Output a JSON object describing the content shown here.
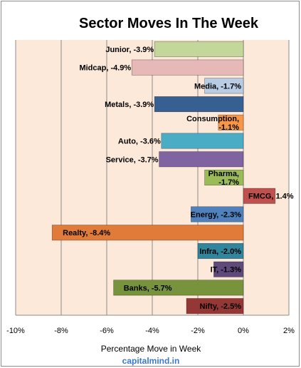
{
  "chart_data": {
    "type": "bar",
    "orientation": "horizontal",
    "title": "Sector Moves In The Week",
    "xlabel": "Percentage Move in Week",
    "ylabel": "",
    "xlim": [
      -10,
      2
    ],
    "x_ticks": [
      "-10%",
      "-8%",
      "-6%",
      "-4%",
      "-2%",
      "0%",
      "2%"
    ],
    "x_tick_values": [
      -10,
      -8,
      -6,
      -4,
      -2,
      0,
      2
    ],
    "grid": "vertical",
    "plot_background": "#fde9d9",
    "source": "capitalmind.in",
    "categories": [
      "Junior",
      "Midcap",
      "Media",
      "Metals",
      "Consumption",
      "Auto",
      "Service",
      "Pharma",
      "FMCG",
      "Energy",
      "Realty",
      "Infra",
      "IT",
      "Banks",
      "Nifty"
    ],
    "values": [
      -3.9,
      -4.9,
      -1.7,
      -3.9,
      -1.1,
      -3.6,
      -3.7,
      -1.7,
      1.4,
      -2.3,
      -8.4,
      -2.0,
      -1.3,
      -5.7,
      -2.5
    ],
    "bars": [
      {
        "name": "Junior",
        "value": -3.9,
        "label": [
          "Junior, -3.9%"
        ],
        "color": "#c4d79b"
      },
      {
        "name": "Midcap",
        "value": -4.9,
        "label": [
          "Midcap, -4.9%"
        ],
        "color": "#e6b9b8"
      },
      {
        "name": "Media",
        "value": -1.7,
        "label": [
          "Media, -1.7%"
        ],
        "color": "#b8cce4"
      },
      {
        "name": "Metals",
        "value": -3.9,
        "label": [
          "Metals, -3.9%"
        ],
        "color": "#376092"
      },
      {
        "name": "Consumption",
        "value": -1.1,
        "label": [
          "Consumption,",
          "-1.1%"
        ],
        "color": "#f79646"
      },
      {
        "name": "Auto",
        "value": -3.6,
        "label": [
          "Auto, -3.6%"
        ],
        "color": "#4bacc6"
      },
      {
        "name": "Service",
        "value": -3.7,
        "label": [
          "Service, -3.7%"
        ],
        "color": "#8064a2"
      },
      {
        "name": "Pharma",
        "value": -1.7,
        "label": [
          "Pharma,",
          "-1.7%"
        ],
        "color": "#9bbb59"
      },
      {
        "name": "FMCG",
        "value": 1.4,
        "label": [
          "FMCG, 1.4%"
        ],
        "color": "#c0504d"
      },
      {
        "name": "Energy",
        "value": -2.3,
        "label": [
          "Energy, -2.3%"
        ],
        "color": "#4f81bd"
      },
      {
        "name": "Realty",
        "value": -8.4,
        "label": [
          "Realty, -8.4%"
        ],
        "color": "#e07b39"
      },
      {
        "name": "Infra",
        "value": -2.0,
        "label": [
          "Infra, -2.0%"
        ],
        "color": "#31859c"
      },
      {
        "name": "IT",
        "value": -1.3,
        "label": [
          "IT, -1.3%"
        ],
        "color": "#604a7b"
      },
      {
        "name": "Banks",
        "value": -5.7,
        "label": [
          "Banks, -5.7%"
        ],
        "color": "#77933c"
      },
      {
        "name": "Nifty",
        "value": -2.5,
        "label": [
          "Nifty, -2.5%"
        ],
        "color": "#953735"
      }
    ]
  }
}
